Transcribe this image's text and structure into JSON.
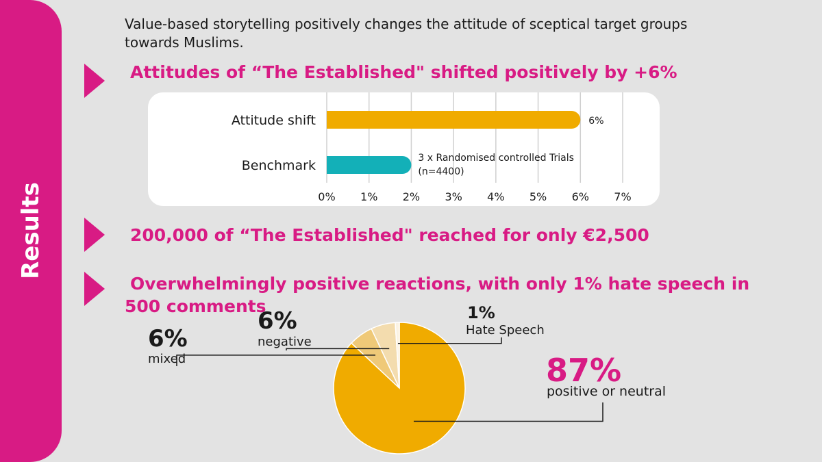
{
  "sidebar": {
    "label": "Results"
  },
  "intro": "Value-based storytelling positively changes the attitude of sceptical target groups towards Muslims.",
  "headlines": [
    "Attitudes of “The Established\" shifted positively by +6%",
    "200,000 of “The Established\" reached for only €2,500",
    "Overwhelmingly positive reactions, with only 1% hate speech in 500 comments"
  ],
  "colors": {
    "accent": "#d81b84",
    "bar_gold": "#f0ab00",
    "bar_teal": "#13b0b8",
    "slice_mixed": "#efc978",
    "slice_negative": "#f3dcae",
    "slice_hate": "#fbf3e2"
  },
  "chart_data": [
    {
      "type": "bar",
      "orientation": "horizontal",
      "categories": [
        "Attitude shift",
        "Benchmark"
      ],
      "values": [
        6,
        2
      ],
      "data_labels": [
        "6%",
        "3 x Randomised controlled Trials (n=4400)"
      ],
      "x_ticks": [
        "0%",
        "1%",
        "2%",
        "3%",
        "4%",
        "5%",
        "6%",
        "7%"
      ],
      "xlim": [
        0,
        7
      ],
      "grid": true
    },
    {
      "type": "pie",
      "slices": [
        {
          "label": "positive or neutral",
          "value": 87,
          "display": "87%"
        },
        {
          "label": "mixed",
          "value": 6,
          "display": "6%"
        },
        {
          "label": "negative",
          "value": 6,
          "display": "6%"
        },
        {
          "label": "Hate Speech",
          "value": 1,
          "display": "1%"
        }
      ]
    }
  ]
}
